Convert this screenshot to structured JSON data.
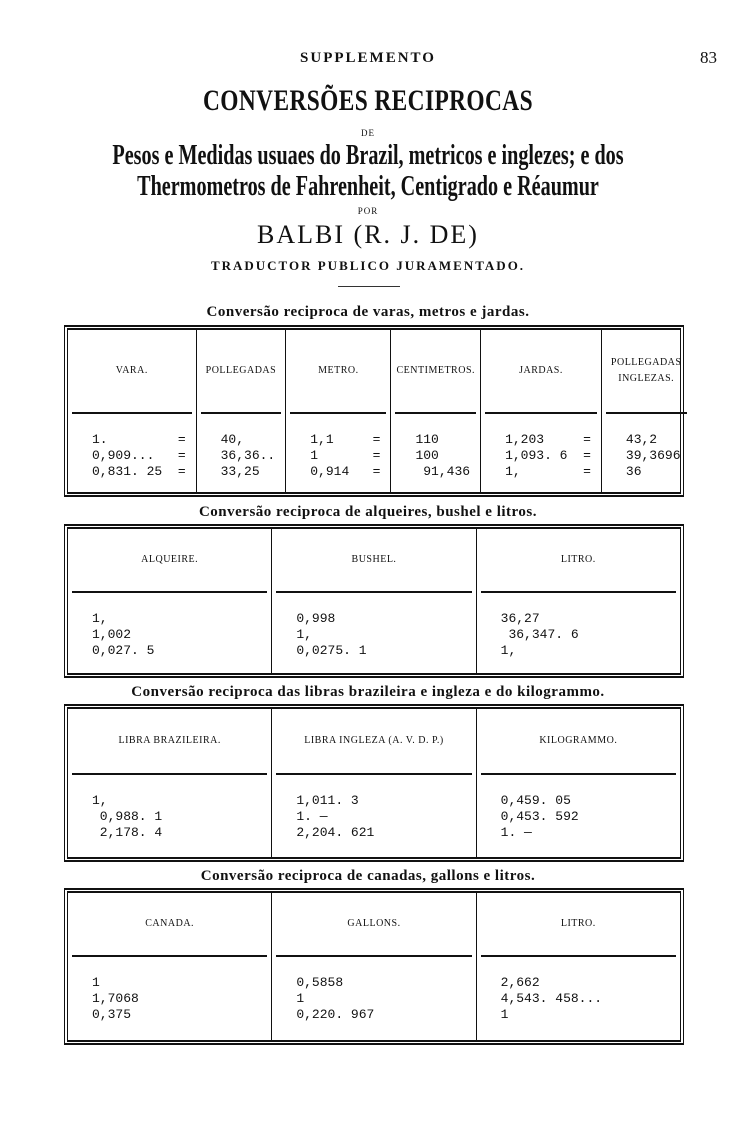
{
  "header": {
    "running_title": "SUPPLEMENTO",
    "page_number": "83"
  },
  "title": "CONVERSÕES RECIPROCAS",
  "de": "DE",
  "subtitle_line1": "Pesos e Medidas usuaes do Brazil, metricos e inglezes; e dos",
  "subtitle_line2": "Thermometros de Fahrenheit, Centigrado e Réaumur",
  "por": "POR",
  "author": "BALBI (R. J. DE)",
  "author_role": "TRADUCTOR PUBLICO JURAMENTADO.",
  "tables": [
    {
      "caption": "Conversão reciproca de varas, metros e jardas.",
      "columns": [
        {
          "header": "VARA.",
          "values": [
            "1.         =",
            "0,909...   =",
            "0,831. 25  ="
          ]
        },
        {
          "header": "POLLEGADAS",
          "values": [
            "40,",
            "36,36..",
            "33,25"
          ]
        },
        {
          "header": "METRO.",
          "values": [
            "1,1     =",
            "1       =",
            "0,914   ="
          ]
        },
        {
          "header": "CENTIMETROS.",
          "values": [
            "110",
            "100",
            " 91,436"
          ]
        },
        {
          "header": "JARDAS.",
          "values": [
            "1,203     =",
            "1,093. 6  =",
            "1,        ="
          ]
        },
        {
          "header": "POLLEGADAS INGLEZAS.",
          "values": [
            "43,2",
            "39,3696",
            "36"
          ]
        }
      ]
    },
    {
      "caption": "Conversão reciproca de alqueires, bushel e litros.",
      "columns": [
        {
          "header": "ALQUEIRE.",
          "values": [
            "1,",
            "1,002",
            "0,027. 5"
          ]
        },
        {
          "header": "BUSHEL.",
          "values": [
            "0,998",
            "1,",
            "0,0275. 1"
          ]
        },
        {
          "header": "LITRO.",
          "values": [
            "36,27",
            " 36,347. 6",
            "1,"
          ]
        }
      ]
    },
    {
      "caption": "Conversão reciproca das libras brazileira e ingleza e do kilogrammo.",
      "columns": [
        {
          "header": "LIBRA BRAZILEIRA.",
          "values": [
            "1,",
            " 0,988. 1",
            " 2,178. 4"
          ]
        },
        {
          "header": "LIBRA INGLEZA (A. V. D. P.)",
          "values": [
            "1,011. 3",
            "1. —",
            "2,204. 621"
          ]
        },
        {
          "header": "KILOGRAMMO.",
          "values": [
            "0,459. 05",
            "0,453. 592",
            "1. —"
          ]
        }
      ]
    },
    {
      "caption": "Conversão reciproca de canadas, gallons e litros.",
      "columns": [
        {
          "header": "CANADA.",
          "values": [
            "1",
            "1,7068",
            "0,375"
          ]
        },
        {
          "header": "GALLONS.",
          "values": [
            "0,5858",
            "1",
            "0,220. 967"
          ]
        },
        {
          "header": "LITRO.",
          "values": [
            "2,662",
            "4,543. 458...",
            "1"
          ]
        }
      ]
    }
  ]
}
